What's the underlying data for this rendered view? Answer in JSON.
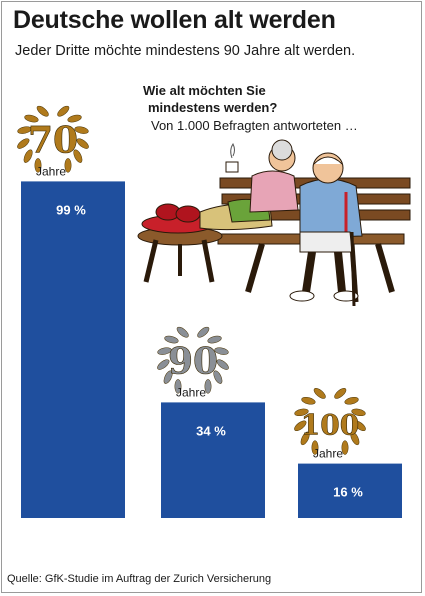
{
  "title": "Deutsche wollen alt werden",
  "subtitle": "Jeder Dritte möchte mindestens 90 Jahre alt werden.",
  "question_line1": "Wie alt möchten Sie",
  "question_line2": "mindestens werden?",
  "note": "Von 1.000 Befragten antworteten …",
  "source": "Quelle: GfK-Studie im Auftrag der Zurich Versicherung",
  "colors": {
    "bar": "#1f4f9e",
    "gold": "#b07a1c",
    "silver": "#8a8f96"
  },
  "chart_data": {
    "type": "bar",
    "categories": [
      "Jahre",
      "Jahre",
      "Jahre"
    ],
    "badges": [
      "70",
      "90",
      "100"
    ],
    "values": [
      99,
      34,
      16
    ],
    "value_labels": [
      "99 %",
      "34 %",
      "16 %"
    ],
    "unit": "%",
    "ylim": [
      0,
      100
    ]
  }
}
